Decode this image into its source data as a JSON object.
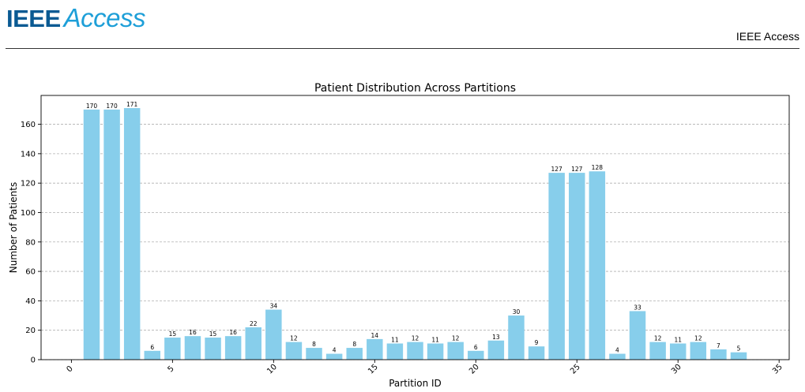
{
  "header": {
    "logo_ieee": "IEEE",
    "logo_access": "Access",
    "journal_name": "IEEE Access"
  },
  "colors": {
    "bar": "#87ceeb",
    "brand_dark": "#0a5a93",
    "brand_light": "#1e9fd8"
  },
  "chart_data": {
    "type": "bar",
    "title": "Patient Distribution Across Partitions",
    "xlabel": "Partition ID",
    "ylabel": "Number of Patients",
    "x": [
      1,
      2,
      3,
      4,
      5,
      6,
      7,
      8,
      9,
      10,
      11,
      12,
      13,
      14,
      15,
      16,
      17,
      18,
      19,
      20,
      21,
      22,
      23,
      24,
      25,
      26,
      27,
      28,
      29,
      30,
      31,
      32,
      33
    ],
    "values": [
      170,
      170,
      171,
      6,
      15,
      16,
      15,
      16,
      22,
      34,
      12,
      8,
      4,
      8,
      14,
      11,
      12,
      11,
      12,
      6,
      13,
      30,
      9,
      127,
      127,
      128,
      4,
      33,
      12,
      11,
      12,
      7,
      5
    ],
    "xlim": [
      -1.5,
      35.5
    ],
    "ylim": [
      0,
      179.6
    ],
    "xticks": [
      0,
      5,
      10,
      15,
      20,
      25,
      30,
      35
    ],
    "xtick_labels": [
      "0",
      "5",
      "10",
      "15",
      "20",
      "25",
      "30",
      "35"
    ],
    "yticks": [
      0,
      20,
      40,
      60,
      80,
      100,
      120,
      140,
      160
    ],
    "ytick_labels": [
      "0",
      "20",
      "40",
      "60",
      "80",
      "100",
      "120",
      "140",
      "160"
    ],
    "grid": "y-dashed"
  }
}
